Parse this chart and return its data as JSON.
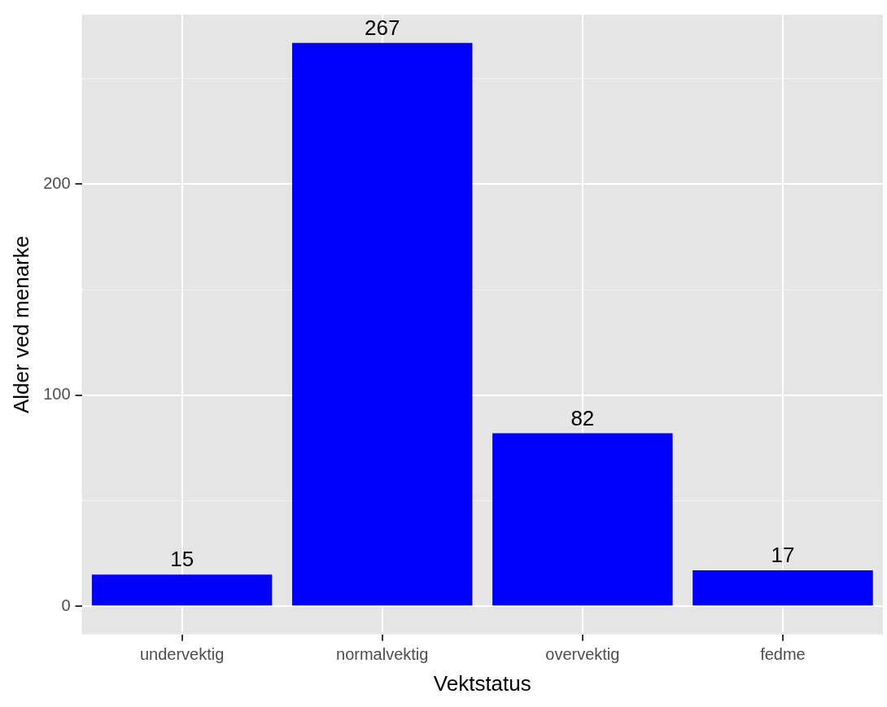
{
  "chart_data": {
    "type": "bar",
    "xlabel": "Vektstatus",
    "ylabel": "Alder ved menarke",
    "categories": [
      "undervektig",
      "normalvektig",
      "overvektig",
      "fedme"
    ],
    "values": [
      15,
      267,
      82,
      17
    ],
    "color": "#0000ff",
    "ylim": [
      -13.35,
      280.35
    ],
    "yticks": [
      {
        "value": 0,
        "label": "0"
      },
      {
        "value": 50,
        "label": null
      },
      {
        "value": 100,
        "label": "100"
      },
      {
        "value": 150,
        "label": null
      },
      {
        "value": 200,
        "label": "200"
      },
      {
        "value": 250,
        "label": null
      }
    ],
    "grid": true,
    "data_labels": true
  }
}
